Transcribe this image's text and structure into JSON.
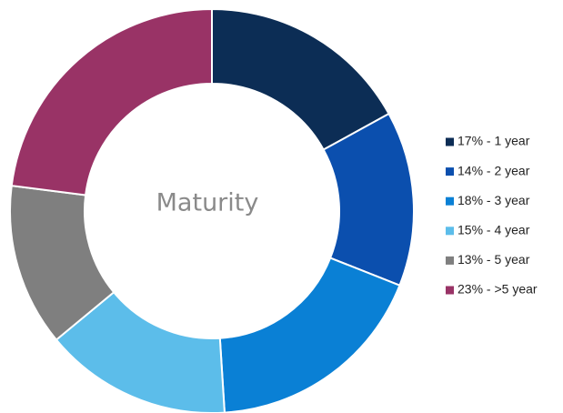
{
  "chart_data": {
    "type": "pie",
    "donut": true,
    "center_label": "Maturity",
    "categories": [
      "17% - 1 year",
      "14% - 2 year",
      "18% - 3 year",
      "15% - 4 year",
      "13% - 5 year",
      "23% - >5 year"
    ],
    "values": [
      17,
      14,
      18,
      15,
      13,
      23
    ],
    "colors": [
      "#0c2d55",
      "#0b4fae",
      "#0a80d5",
      "#5cbdea",
      "#7f7f7f",
      "#993366"
    ],
    "legend": "right"
  }
}
